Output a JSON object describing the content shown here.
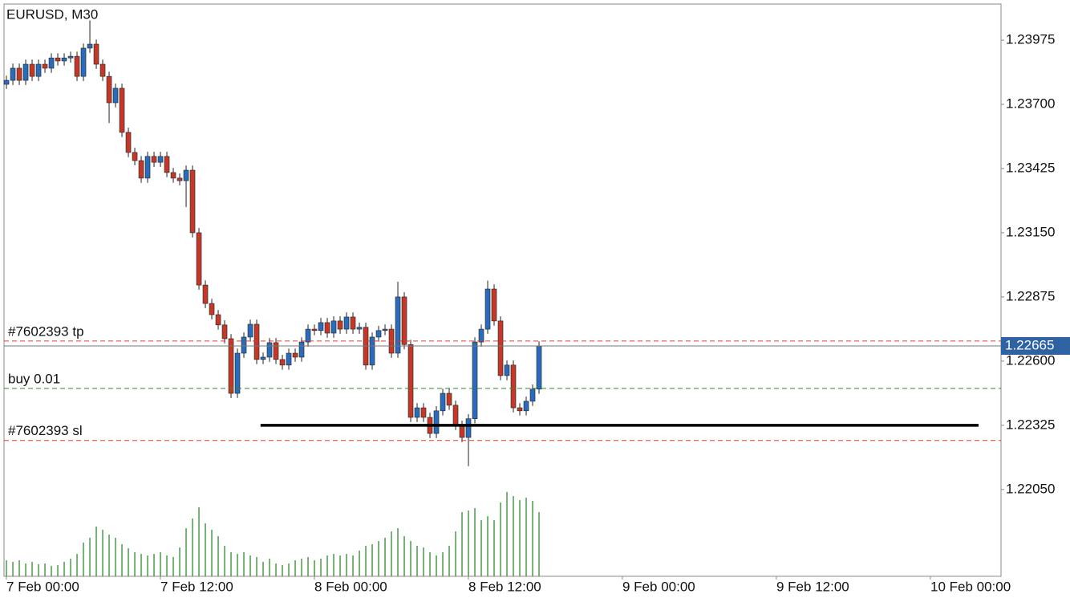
{
  "chart_data": {
    "type": "candlestick",
    "title": "EURUSD, M30",
    "x": [
      0,
      0.5,
      1,
      1.5,
      2,
      2.5,
      3,
      3.5,
      4,
      4.5,
      5,
      5.5,
      6,
      6.5,
      7,
      7.5,
      8,
      8.5,
      9,
      9.5,
      10,
      10.5,
      11,
      11.5,
      12,
      12.5,
      13,
      13.5,
      14,
      14.5,
      15,
      15.5,
      16,
      16.5,
      17,
      17.5,
      18,
      18.5,
      19,
      19.5,
      20,
      20.5,
      21,
      21.5,
      22,
      22.5,
      23,
      23.5,
      24,
      24.5,
      25,
      25.5,
      26,
      26.5,
      27,
      27.5,
      28,
      28.5,
      29,
      29.5,
      30,
      30.5,
      31,
      31.5,
      32,
      32.5,
      33,
      33.5,
      34,
      34.5,
      35,
      35.5,
      36,
      36.5,
      37,
      37.5,
      38,
      38.5,
      39,
      39.5,
      40,
      40.5,
      41,
      41.5
    ],
    "open": [
      1.23786,
      1.23803,
      1.23855,
      1.23803,
      1.23872,
      1.2382,
      1.23872,
      1.23855,
      1.23899,
      1.23886,
      1.23899,
      1.23906,
      1.2382,
      1.23941,
      1.23958,
      1.23872,
      1.2382,
      1.23707,
      1.23769,
      1.2358,
      1.23494,
      1.23459,
      1.23384,
      1.23477,
      1.23452,
      1.23477,
      1.23408,
      1.23384,
      1.23373,
      1.23418,
      1.2315,
      1.22926,
      1.22847,
      1.22799,
      1.22755,
      1.22696,
      1.22462,
      1.22634,
      1.22703,
      1.22758,
      1.22607,
      1.22617,
      1.22679,
      1.22607,
      1.22583,
      1.22634,
      1.22617,
      1.22682,
      1.22737,
      1.22731,
      1.22765,
      1.2272,
      1.22772,
      1.22737,
      1.22789,
      1.22737,
      1.22745,
      1.22583,
      1.22703,
      1.22731,
      1.22737,
      1.22634,
      1.22875,
      1.22671,
      1.22359,
      1.224,
      1.22359,
      1.2229,
      1.22387,
      1.22462,
      1.22411,
      1.22325,
      1.22273,
      1.22353,
      1.22682,
      1.22737,
      1.22909,
      1.22772,
      1.22538,
      1.22583,
      1.224,
      1.22387,
      1.22428,
      1.2248
    ],
    "high": [
      1.23823,
      1.23875,
      1.23875,
      1.23892,
      1.23892,
      1.23892,
      1.23892,
      1.23919,
      1.23919,
      1.23919,
      1.23926,
      1.23926,
      1.23961,
      1.2406,
      1.23978,
      1.23892,
      1.2384,
      1.23789,
      1.23789,
      1.236,
      1.23514,
      1.23479,
      1.23497,
      1.23497,
      1.23497,
      1.23497,
      1.23428,
      1.23404,
      1.23438,
      1.23438,
      1.2317,
      1.22946,
      1.22867,
      1.22819,
      1.22775,
      1.22716,
      1.22654,
      1.22723,
      1.22778,
      1.22778,
      1.22637,
      1.22699,
      1.22699,
      1.22627,
      1.22654,
      1.22654,
      1.22702,
      1.22757,
      1.22757,
      1.22785,
      1.22785,
      1.22792,
      1.22792,
      1.22809,
      1.22809,
      1.22765,
      1.22765,
      1.22723,
      1.22751,
      1.22757,
      1.22757,
      1.2294,
      1.22895,
      1.22691,
      1.2242,
      1.2242,
      1.22379,
      1.22407,
      1.22482,
      1.22482,
      1.22431,
      1.22345,
      1.22373,
      1.22702,
      1.22757,
      1.22945,
      1.22929,
      1.22792,
      1.22603,
      1.22603,
      1.2242,
      1.22448,
      1.225,
      1.22685
    ],
    "low": [
      1.23766,
      1.23783,
      1.23783,
      1.23783,
      1.238,
      1.238,
      1.23835,
      1.23835,
      1.23866,
      1.23866,
      1.23879,
      1.238,
      1.238,
      1.23921,
      1.23852,
      1.238,
      1.2362,
      1.23687,
      1.2356,
      1.23474,
      1.23439,
      1.23364,
      1.23364,
      1.23432,
      1.23432,
      1.23388,
      1.23364,
      1.23353,
      1.2326,
      1.2313,
      1.22906,
      1.22827,
      1.22779,
      1.22735,
      1.22676,
      1.22442,
      1.22442,
      1.22614,
      1.22683,
      1.22587,
      1.22587,
      1.22597,
      1.22587,
      1.22563,
      1.22563,
      1.22597,
      1.22597,
      1.22662,
      1.22711,
      1.22711,
      1.227,
      1.227,
      1.22717,
      1.22717,
      1.22717,
      1.22717,
      1.22563,
      1.22563,
      1.22683,
      1.22711,
      1.22614,
      1.22614,
      1.22651,
      1.22339,
      1.22339,
      1.22339,
      1.2227,
      1.2227,
      1.22367,
      1.22391,
      1.22305,
      1.22253,
      1.2215,
      1.22333,
      1.22662,
      1.22717,
      1.22752,
      1.22518,
      1.22518,
      1.2238,
      1.22367,
      1.22367,
      1.22408,
      1.2246
    ],
    "close": [
      1.23803,
      1.23855,
      1.23803,
      1.23872,
      1.2382,
      1.23872,
      1.23855,
      1.23899,
      1.23886,
      1.23899,
      1.23906,
      1.2382,
      1.23941,
      1.23958,
      1.23872,
      1.2382,
      1.23707,
      1.23769,
      1.2358,
      1.23494,
      1.23459,
      1.23384,
      1.23477,
      1.23452,
      1.23477,
      1.23408,
      1.23384,
      1.23373,
      1.23418,
      1.2315,
      1.22926,
      1.22847,
      1.22799,
      1.22755,
      1.22696,
      1.22462,
      1.22634,
      1.22703,
      1.22758,
      1.22607,
      1.22617,
      1.22679,
      1.22607,
      1.22583,
      1.22634,
      1.22617,
      1.22682,
      1.22737,
      1.22731,
      1.22765,
      1.2272,
      1.22772,
      1.22737,
      1.22789,
      1.22737,
      1.22745,
      1.22583,
      1.22703,
      1.22731,
      1.22737,
      1.22634,
      1.22875,
      1.22671,
      1.22359,
      1.224,
      1.22359,
      1.2229,
      1.22387,
      1.22462,
      1.22411,
      1.22325,
      1.22273,
      1.22353,
      1.22682,
      1.22737,
      1.22909,
      1.22772,
      1.22538,
      1.22583,
      1.224,
      1.22387,
      1.22428,
      1.2248,
      1.22665
    ],
    "volume": [
      20,
      18,
      20,
      16,
      18,
      15,
      16,
      13,
      14,
      18,
      22,
      28,
      42,
      48,
      62,
      58,
      52,
      48,
      40,
      35,
      30,
      28,
      26,
      28,
      30,
      26,
      24,
      36,
      60,
      72,
      86,
      66,
      58,
      50,
      38,
      30,
      28,
      30,
      26,
      24,
      18,
      22,
      16,
      14,
      16,
      20,
      22,
      24,
      20,
      22,
      26,
      28,
      26,
      28,
      26,
      32,
      38,
      40,
      44,
      48,
      56,
      60,
      50,
      44,
      38,
      36,
      30,
      26,
      30,
      38,
      56,
      80,
      82,
      85,
      70,
      75,
      70,
      92,
      105,
      100,
      95,
      98,
      94,
      80
    ],
    "colors": {
      "up": "#2c6bb8",
      "down": "#c0392b",
      "volume": "#2e8b2e",
      "trendline": "#000000",
      "current": "#2f62a0"
    },
    "xlim": [
      -0.19,
      77.5
    ],
    "xticks": [
      {
        "value": 0,
        "label": "7 Feb 00:00"
      },
      {
        "value": 12,
        "label": "7 Feb 12:00"
      },
      {
        "value": 24,
        "label": "8 Feb 00:00"
      },
      {
        "value": 36,
        "label": "8 Feb 12:00"
      },
      {
        "value": 48,
        "label": "9 Feb 00:00"
      },
      {
        "value": 60,
        "label": "9 Feb 12:00"
      },
      {
        "value": 72,
        "label": "10 Feb 00:00"
      }
    ],
    "ylim": [
      1.21678,
      1.2413
    ],
    "yticks": [
      1.23975,
      {
        "value": 1.237,
        "label": "1.23700"
      },
      1.23425,
      {
        "value": 1.2315,
        "label": "1.23150"
      },
      1.22875,
      {
        "value": 1.226,
        "label": "1.22600"
      },
      1.22325,
      {
        "value": 1.2205,
        "label": "1.22050"
      }
    ],
    "levels": [
      {
        "label": "#7602393 tp",
        "value": 1.22686,
        "color": "#e03a2a"
      },
      {
        "label": "buy 0.01",
        "value": 1.22483,
        "color": "#2e8b2e"
      },
      {
        "label": "#7602393 sl",
        "value": 1.2226,
        "color": "#e03a2a"
      }
    ],
    "current_price": 1.22665,
    "trendline": {
      "x": [
        19.8,
        75.75
      ],
      "value": 1.22325
    }
  }
}
